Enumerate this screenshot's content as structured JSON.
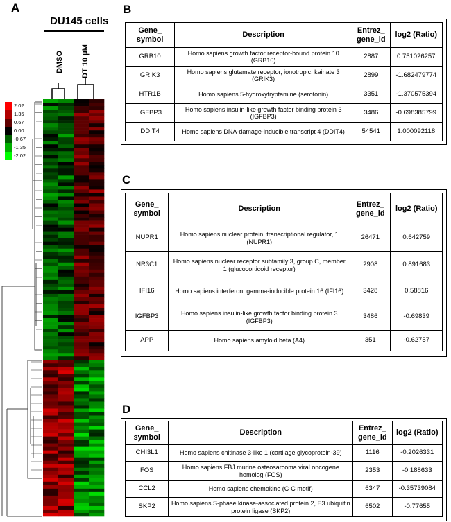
{
  "panel_labels": {
    "a": "A",
    "b": "B",
    "c": "C",
    "d": "D"
  },
  "heatmap": {
    "title": "DU145 cells",
    "columns": [
      "DMSO",
      "DT 10 μM"
    ],
    "legend": [
      "2.02",
      "1.35",
      "0.67",
      "0.00",
      "-0.67",
      "-1.35",
      "-2.02"
    ],
    "colors": {
      "high": "#ff0000",
      "mid": "#000000",
      "low": "#00ff00"
    }
  },
  "table_b": {
    "headers": [
      "Gene_ symbol",
      "Description",
      "Entrez_ gene_id",
      "log2 (Ratio)"
    ],
    "rows": [
      [
        "GRB10",
        "Homo sapiens growth factor receptor-bound protein 10 (GRB10)",
        "2887",
        "0.751026257"
      ],
      [
        "GRIK3",
        "Homo sapiens glutamate  receptor, ionotropic, kainate 3 (GRIK3)",
        "2899",
        "-1.682479774"
      ],
      [
        "HTR1B",
        "Homo sapiens 5-hydroxytryptamine (serotonin)",
        "3351",
        "-1.370575394"
      ],
      [
        "IGFBP3",
        "Homo sapiens insulin-like growth factor binding protein 3 (IGFBP3)",
        "3486",
        "-0.698385799"
      ],
      [
        "DDIT4",
        "Homo sapiens DNA-damage-inducible transcript 4 (DDIT4)",
        "54541",
        "1.000092118"
      ]
    ]
  },
  "table_c": {
    "headers": [
      "Gene_ symbol",
      "Description",
      "Entrez_ gene_id",
      "log2 (Ratio)"
    ],
    "rows": [
      [
        "NUPR1",
        "Homo sapiens nuclear protein, transcriptional regulator, 1 (NUPR1)",
        "26471",
        "0.642759"
      ],
      [
        "NR3C1",
        "Homo sapiens nuclear receptor subfamily 3, group C, member 1 (glucocorticoid receptor)",
        "2908",
        "0.891683"
      ],
      [
        "IFI16",
        "Homo sapiens interferon, gamma-inducible protein 16 (IFI16)",
        "3428",
        "0.58816"
      ],
      [
        "IGFBP3",
        "Homo sapiens insulin-like growth factor binding protein 3 (IGFBP3)",
        "3486",
        "-0.69839"
      ],
      [
        "APP",
        "Homo sapiens amyloid beta (A4)",
        "351",
        "-0.62757"
      ]
    ]
  },
  "table_d": {
    "headers": [
      "Gene_ symbol",
      "Description",
      "Entrez_ gene_id",
      "log2 (Ratio)"
    ],
    "rows": [
      [
        "CHI3L1",
        "Homo sapiens chitinase 3-like 1 (cartilage glycoprotein-39)",
        "1116",
        "-0.2026331"
      ],
      [
        "FOS",
        "Homo sapiens FBJ murine osteosarcoma viral oncogene homolog (FOS)",
        "2353",
        "-0.188633"
      ],
      [
        "CCL2",
        "Homo sapiens chemokine (C-C motif)",
        "6347",
        "-0.35739084"
      ],
      [
        "SKP2",
        "Homo sapiens S-phase kinase-associated protein 2, E3 ubiquitin protein ligase (SKP2)",
        "6502",
        "-0.77655"
      ]
    ]
  }
}
